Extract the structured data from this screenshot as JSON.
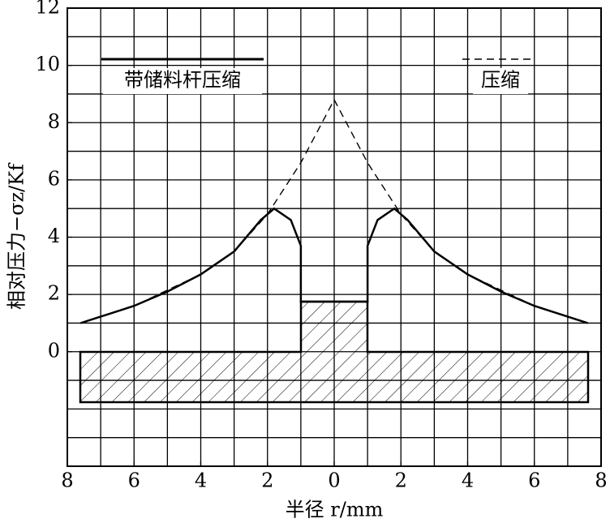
{
  "chart_data": {
    "type": "line",
    "x_label": "半径 r/mm",
    "y_label": "相对压力−σz/Kf",
    "xlim": [
      -8,
      8
    ],
    "ylim": [
      -4,
      12
    ],
    "xticks": [
      {
        "value": -8,
        "label": "8"
      },
      {
        "value": -6,
        "label": "6"
      },
      {
        "value": -4,
        "label": "4"
      },
      {
        "value": -2,
        "label": "2"
      },
      0,
      2,
      4,
      6,
      8
    ],
    "yticks": [
      0,
      2,
      4,
      6,
      8,
      10,
      12
    ],
    "xgrid": [
      -8,
      -7,
      -6,
      -5,
      -4,
      -3,
      -2,
      -1,
      0,
      1,
      2,
      3,
      4,
      5,
      6,
      7,
      8
    ],
    "ygrid": [
      -4,
      -3,
      -2,
      -1,
      0,
      1,
      2,
      3,
      4,
      5,
      6,
      7,
      8,
      9,
      10,
      11,
      12
    ],
    "series": [
      {
        "name": "带储料杆压缩",
        "color": "#000000",
        "dash": false,
        "x": [
          -7.6,
          -6,
          -5,
          -4,
          -3,
          -2.2,
          -1.8,
          -1.3,
          -1,
          -1,
          1,
          1,
          1.3,
          1.8,
          2.2,
          3,
          4,
          5,
          6,
          7.6
        ],
        "values": [
          1,
          1.6,
          2.1,
          2.7,
          3.5,
          4.6,
          5,
          4.6,
          3.7,
          1.75,
          1.75,
          3.7,
          4.6,
          5,
          4.6,
          3.5,
          2.7,
          2.1,
          1.6,
          1
        ]
      },
      {
        "name": "压缩",
        "color": "#000000",
        "dash": true,
        "x": [
          -7.6,
          -6,
          -4,
          -3,
          -2,
          -1,
          0,
          1,
          2,
          3,
          4,
          6,
          7.6
        ],
        "values": [
          1,
          1.6,
          2.7,
          3.5,
          4.8,
          6.6,
          8.8,
          6.6,
          4.8,
          3.5,
          2.7,
          1.6,
          1
        ]
      }
    ]
  }
}
